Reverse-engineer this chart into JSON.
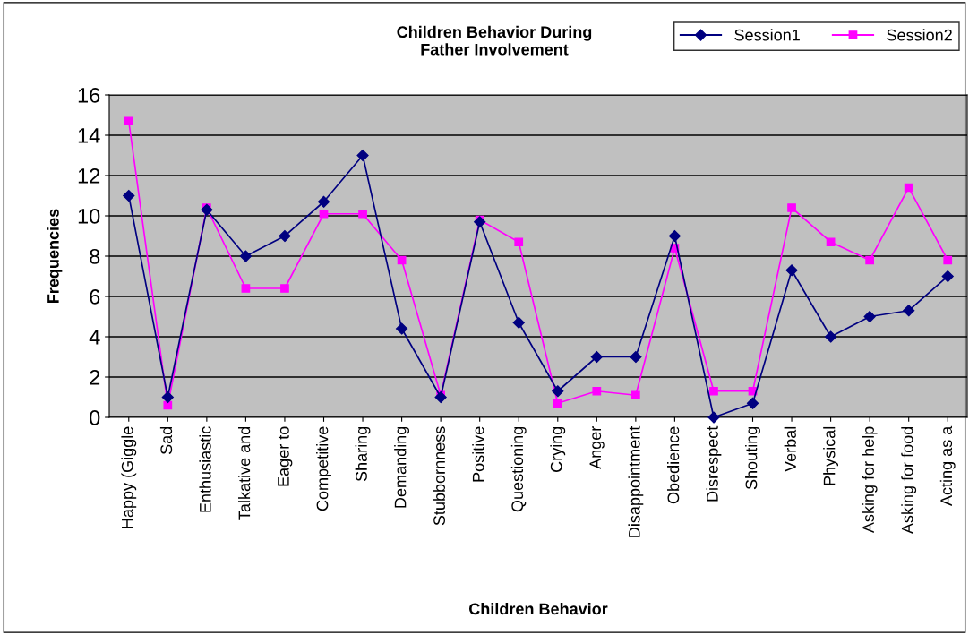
{
  "chart_data": {
    "type": "line",
    "title": "Children Behavior During\nFather Involvement",
    "xlabel": "Children Behavior",
    "ylabel": "Frequencies",
    "categories": [
      "Happy (Giggle",
      "Sad",
      "Enthusiastic",
      "Talkative and",
      "Eager to",
      "Competitive",
      "Sharing",
      "Demanding",
      "Stubbornness",
      "Positive",
      "Questioning",
      "Crying",
      "Anger",
      "Disappointment",
      "Obedience",
      "Disrespect",
      "Shouting",
      "Verbal",
      "Physical",
      "Asking for help",
      "Asking for food",
      "Acting as a"
    ],
    "series": [
      {
        "name": "Session1",
        "color": "#000080",
        "marker": "diamond",
        "values": [
          11,
          1,
          10.3,
          8,
          9,
          10.7,
          13,
          4.4,
          1,
          9.7,
          4.7,
          1.3,
          3,
          3,
          9,
          0,
          0.7,
          7.3,
          4,
          5,
          5.3,
          7
        ]
      },
      {
        "name": "Session2",
        "color": "#ff00ff",
        "marker": "square",
        "values": [
          14.7,
          0.6,
          10.4,
          6.4,
          6.4,
          10.1,
          10.1,
          7.8,
          1.1,
          9.8,
          8.7,
          0.7,
          1.3,
          1.1,
          8.4,
          1.3,
          1.3,
          10.4,
          8.7,
          7.8,
          11.4,
          7.8
        ]
      }
    ],
    "ylim": [
      0,
      16
    ],
    "yticks": [
      0,
      2,
      4,
      6,
      8,
      10,
      12,
      14,
      16
    ],
    "grid": "y",
    "legend": "top right",
    "line_style": "solid"
  }
}
